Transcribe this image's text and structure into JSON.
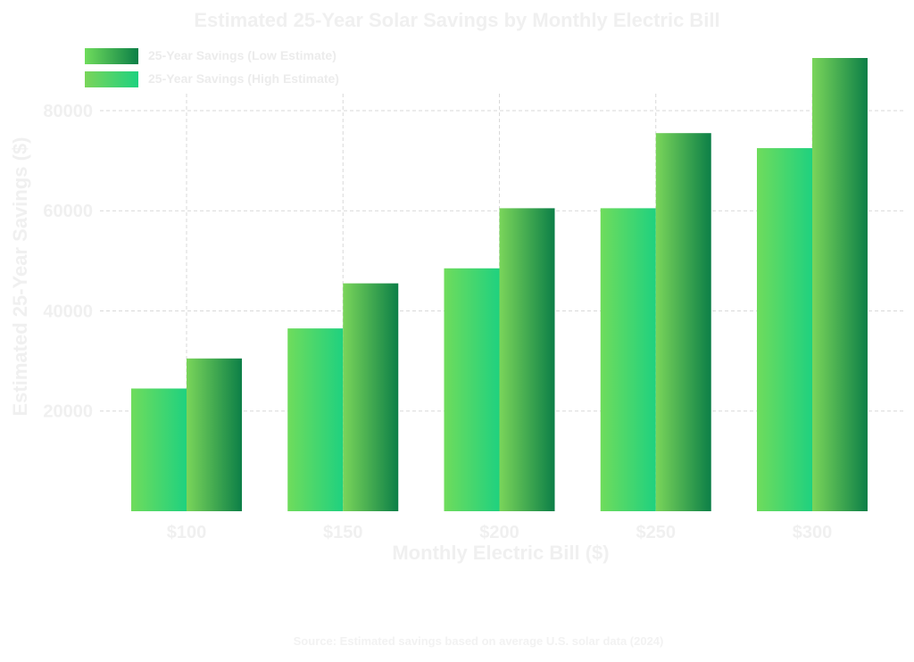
{
  "chart_data": {
    "type": "bar",
    "title": "Estimated 25-Year Solar Savings by Monthly Electric Bill",
    "xlabel": "Monthly Electric Bill ($)",
    "ylabel": "Estimated 25-Year Savings ($)",
    "categories": [
      "$100",
      "$150",
      "$200",
      "$250",
      "$300"
    ],
    "series": [
      {
        "name": "25-Year Savings (Low Estimate)",
        "values": [
          24500,
          36500,
          48500,
          60500,
          72500
        ],
        "colors": [
          "#6fdc5c",
          "#1fd17f"
        ]
      },
      {
        "name": "25-Year Savings (High Estimate)",
        "values": [
          30500,
          45500,
          60500,
          75500,
          90500
        ],
        "colors": [
          "#7ad55a",
          "#0c7f47"
        ]
      }
    ],
    "ylim": [
      0,
      90500
    ],
    "yticks": [
      20000,
      40000,
      60000,
      80000
    ],
    "grid": true,
    "legend_position": "top-left",
    "source": "Source: Estimated savings based on average U.S. solar data (2024)"
  }
}
